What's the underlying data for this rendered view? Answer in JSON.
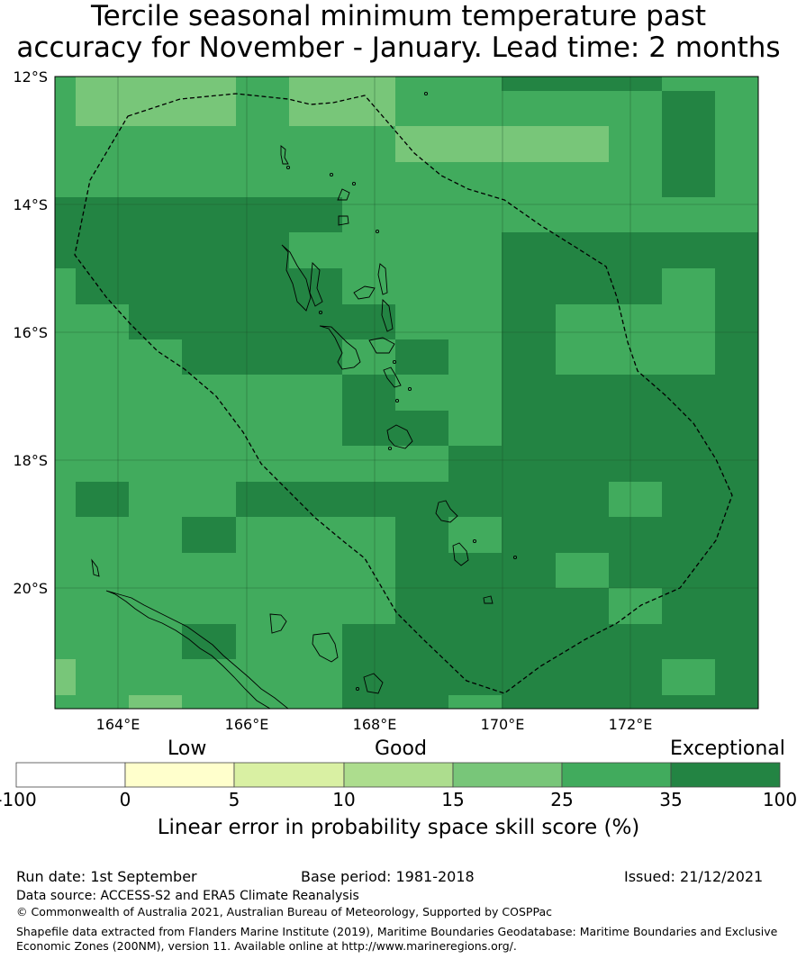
{
  "title_line1": "Tercile seasonal minimum temperature past",
  "title_line2": "accuracy for November - January. Lead time: 2 months",
  "map": {
    "lat_labels": [
      "12°S",
      "14°S",
      "16°S",
      "18°S",
      "20°S"
    ],
    "lon_labels": [
      "164°E",
      "166°E",
      "168°E",
      "170°E",
      "172°E"
    ],
    "lon_range": [
      163.0,
      174.0
    ],
    "lat_range": [
      -21.9,
      -12.0
    ],
    "grid_on": true
  },
  "colorbar": {
    "category_labels": [
      "Low",
      "Good",
      "Exceptional"
    ],
    "ticks": [
      "-100",
      "0",
      "5",
      "10",
      "15",
      "25",
      "35",
      "100"
    ],
    "colors": [
      "#ffffff",
      "#ffffcc",
      "#d9f0a3",
      "#addd8e",
      "#78c679",
      "#41ab5d",
      "#238443"
    ],
    "label": "Linear error in probability space skill score (%)"
  },
  "footer": {
    "run_date": "Run date: 1st September",
    "base_period": "Base period: 1981-2018",
    "issued": "Issued: 21/12/2021",
    "data_source": "Data source: ACCESS-S2 and ERA5 Climate Reanalysis",
    "copyright": "© Commonwealth of Australia 2021, Australian Bureau of Meteorology, Supported by COSPPac",
    "shapefile_line1": "Shapefile data extracted from Flanders Marine Institute (2019), Maritime Boundaries Geodatabase: Maritime Boundaries and Exclusive",
    "shapefile_line2": "Economic Zones (200NM), version 11. Available online at http://www.marineregions.org/."
  }
}
